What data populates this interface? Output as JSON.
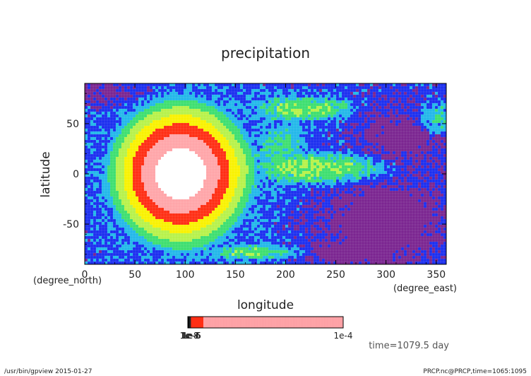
{
  "chart_data": {
    "type": "heatmap",
    "title": "precipitation",
    "xlabel": "longitude",
    "ylabel": "latitude",
    "x_units": "(degree_east)",
    "y_units": "(degree_north)",
    "xlim": [
      0,
      360
    ],
    "ylim": [
      -90,
      90
    ],
    "x_ticks": [
      0,
      50,
      100,
      150,
      200,
      250,
      300,
      350
    ],
    "y_ticks": [
      -50,
      0,
      50
    ],
    "field": {
      "background_level": 1,
      "blobs": [
        {
          "lon": 95,
          "lat": 0,
          "rlon": 85,
          "rlat": 88,
          "peak": 6.6
        },
        {
          "lon": 240,
          "lat": 5,
          "rlon": 95,
          "rlat": 22,
          "peak": 3.0
        },
        {
          "lon": 220,
          "lat": 65,
          "rlon": 70,
          "rlat": 18,
          "peak": 2.8
        },
        {
          "lon": 170,
          "lat": -78,
          "rlon": 80,
          "rlat": 12,
          "peak": 2.6
        },
        {
          "lon": 350,
          "lat": 55,
          "rlon": 30,
          "rlat": 25,
          "peak": 2.5
        },
        {
          "lon": 195,
          "lat": 25,
          "rlon": 35,
          "rlat": 40,
          "peak": 2.3
        }
      ],
      "low_patches": [
        {
          "lon": 300,
          "lat": -45,
          "rlon": 60,
          "rlat": 38,
          "depth": 1.8
        },
        {
          "lon": 320,
          "lat": 40,
          "rlon": 45,
          "rlat": 30,
          "depth": 1.4
        },
        {
          "lon": 20,
          "lat": 80,
          "rlon": 40,
          "rlat": 12,
          "depth": 1.2
        },
        {
          "lon": 250,
          "lat": -80,
          "rlon": 50,
          "rlat": 10,
          "depth": 1.2
        }
      ],
      "noise_amplitude": 0.7,
      "grid": {
        "nlon": 128,
        "nlat": 64
      }
    },
    "levels": [
      {
        "color": "#7b2590"
      },
      {
        "color": "#1c2ff0"
      },
      {
        "color": "#22b8ea"
      },
      {
        "color": "#3ddf70"
      },
      {
        "color": "#b7f24a"
      },
      {
        "color": "#f9f200"
      },
      {
        "color": "#ff2e14"
      },
      {
        "color": "#ffa5a9"
      },
      {
        "color": "#ffffff"
      }
    ],
    "colorbar": {
      "left_label": "1e-8",
      "left_label_overlap": [
        "1e-8",
        "1e-7",
        "1e-6",
        "1e-5"
      ],
      "right_label": "1e-4",
      "segments": [
        {
          "color": "#000000",
          "fraction": 0.01
        },
        {
          "color": "#222222",
          "fraction": 0.01
        },
        {
          "color": "#ff2e14",
          "fraction": 0.08
        },
        {
          "color": "#ffa5a9",
          "fraction": 0.9
        }
      ]
    },
    "annotation": "time=1079.5 day"
  },
  "footer": {
    "left": "/usr/bin/gpview  2015-01-27",
    "right": "PRCP.nc@PRCP,time=1065:1095"
  }
}
